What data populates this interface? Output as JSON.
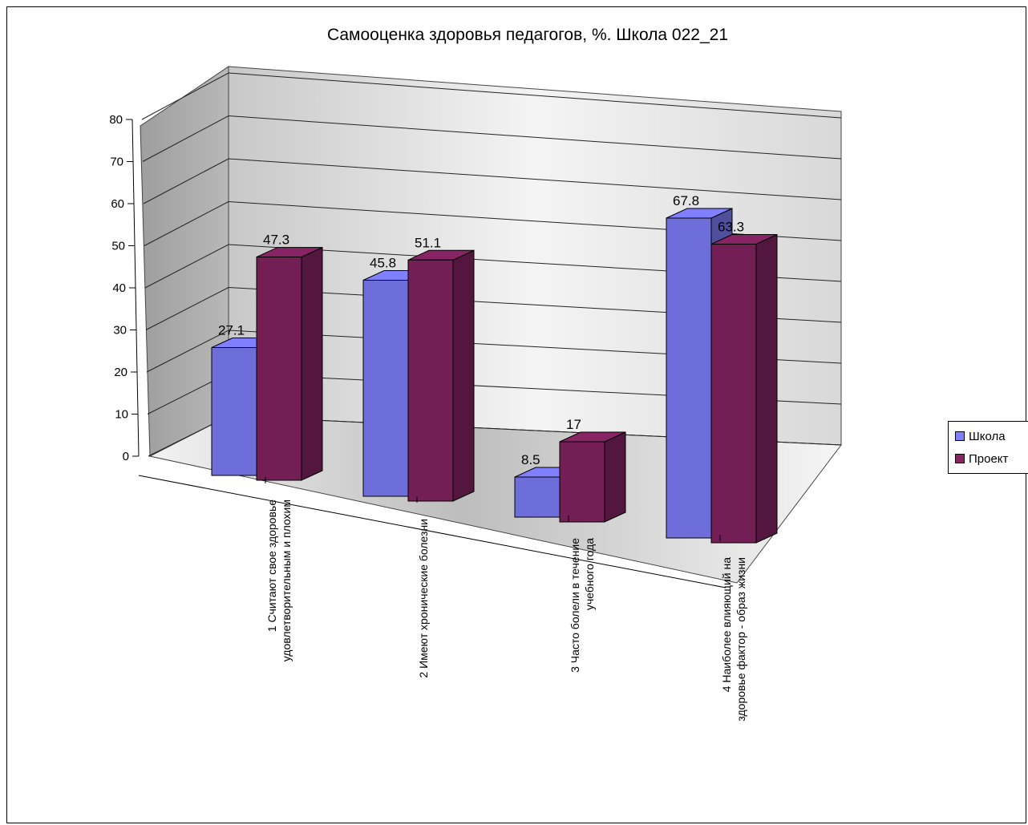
{
  "chart_data": {
    "type": "bar",
    "style": "3d-clustered-column",
    "title": "Самооценка здоровья педагогов, %. Школа 022_21",
    "categories": [
      [
        "1 Считают свое здоровье",
        "удовлетворительным и плохим"
      ],
      [
        "2 Имеют хронические болезни"
      ],
      [
        "3 Часто болели в течение",
        "учебного года"
      ],
      [
        "4 Наиболее влияющий на",
        "здоровье фактор - образ жизни"
      ]
    ],
    "series": [
      {
        "name": "Школа",
        "values": [
          27.1,
          45.8,
          8.5,
          67.8
        ],
        "labels": [
          "27.1",
          "45.8",
          "8.5",
          "67.8"
        ],
        "color": "#8080ff"
      },
      {
        "name": "Проект",
        "values": [
          47.3,
          51.1,
          17,
          63.3
        ],
        "labels": [
          "47.3",
          "51.1",
          "17",
          "63.3"
        ],
        "color": "#862464"
      }
    ],
    "ylim": [
      0,
      80
    ],
    "yticks": [
      "0",
      "10",
      "20",
      "30",
      "40",
      "50",
      "60",
      "70",
      "80"
    ],
    "grid": true,
    "legend_position": "right"
  }
}
